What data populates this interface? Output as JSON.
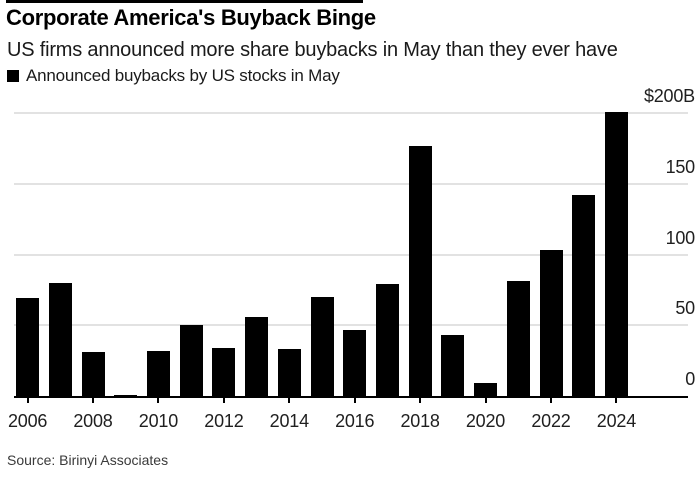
{
  "header": {
    "title": "Corporate America's Buyback Binge",
    "subtitle": "US firms announced more share buybacks in May than they ever have"
  },
  "legend": {
    "label": "Announced buybacks by US stocks in May"
  },
  "source": "Source: Birinyi Associates",
  "colors": {
    "bar": "#000000",
    "gridline": "#e2e2e2",
    "axis": "#000000",
    "accent_rule": "#000000",
    "background": "#ffffff"
  },
  "chart_data": {
    "type": "bar",
    "title": "Corporate America's Buyback Binge",
    "subtitle": "US firms announced more share buybacks in May than they ever have",
    "series_name": "Announced buybacks by US stocks in May",
    "unit": "$B",
    "categories": [
      2006,
      2007,
      2008,
      2009,
      2010,
      2011,
      2012,
      2013,
      2014,
      2015,
      2016,
      2017,
      2018,
      2019,
      2020,
      2021,
      2022,
      2023,
      2024
    ],
    "values": [
      69,
      80,
      31,
      1,
      32,
      50,
      34,
      56,
      33,
      70,
      47,
      79,
      177,
      43,
      9,
      81,
      103,
      142,
      201
    ],
    "xlabel": "",
    "ylabel": "",
    "ylim": [
      0,
      200
    ],
    "yticks": [
      {
        "value": 0,
        "label": "0"
      },
      {
        "value": 50,
        "label": "50"
      },
      {
        "value": 100,
        "label": "100"
      },
      {
        "value": 150,
        "label": "150"
      },
      {
        "value": 200,
        "label": "$200B"
      }
    ],
    "xticks": [
      2006,
      2008,
      2010,
      2012,
      2014,
      2016,
      2018,
      2020,
      2022,
      2024
    ],
    "grid": "horizontal",
    "y_axis_side": "right",
    "legend_position": "top-left"
  }
}
